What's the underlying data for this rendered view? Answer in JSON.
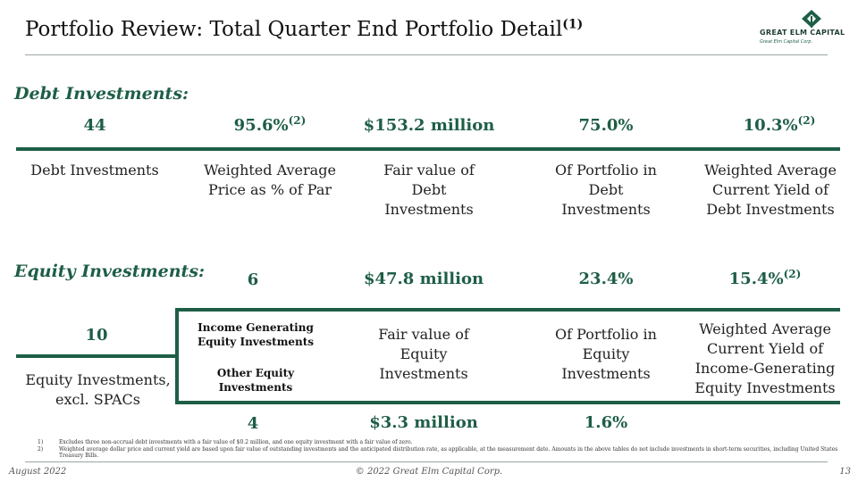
{
  "header": {
    "title": "Portfolio Review: Total Quarter End Portfolio Detail",
    "title_sup": "(1)",
    "logo_text": "GREAT ELM CAPITAL",
    "logo_sub": "Great Elm Capital Corp."
  },
  "debt": {
    "section_label": "Debt Investments:",
    "stats": [
      {
        "value": "44",
        "sup": "",
        "label": "Debt Investments"
      },
      {
        "value": "95.6%",
        "sup": "(2)",
        "label": "Weighted Average Price as % of Par"
      },
      {
        "value": "$153.2 million",
        "sup": "",
        "label": "Fair value of Debt Investments"
      },
      {
        "value": "75.0%",
        "sup": "",
        "label": "Of Portfolio in Debt Investments"
      },
      {
        "value": "10.3%",
        "sup": "(2)",
        "label": "Weighted Average Current Yield of Debt Investments"
      }
    ]
  },
  "equity": {
    "section_label": "Equity Investments:",
    "total_count": "10",
    "total_label": "Equity Investments, excl. SPACs",
    "income_generating": {
      "label": "Income Generating Equity Investments",
      "count": "6",
      "fair_value": "$47.8 million",
      "portfolio_pct": "23.4%",
      "yield": "15.4%",
      "yield_sup": "(2)"
    },
    "other": {
      "label": "Other Equity Investments",
      "count": "4",
      "fair_value": "$3.3 million",
      "portfolio_pct": "1.6%"
    },
    "fair_value_label": "Fair value of Equity Investments",
    "portfolio_label": "Of Portfolio in Equity Investments",
    "yield_label": "Weighted Average Current Yield of Income-Generating Equity Investments"
  },
  "footnotes": [
    {
      "num": "1)",
      "text": "Excludes three non-accrual debt investments with a fair value of $0.2 million, and one equity investment with a fair value of zero."
    },
    {
      "num": "2)",
      "text": "Weighted average dollar price and current yield are based upon fair value of outstanding investments and the anticipated distribution rate, as applicable, at the measurement date. Amounts in the above tables do not include investments in short-term securities, including United States Treasury Bills."
    }
  ],
  "footer": {
    "date": "August 2022",
    "copyright": "© 2022 Great Elm Capital Corp.",
    "page": "13"
  },
  "colors": {
    "accent": "#1e5e46",
    "rule": "#9aa79f"
  }
}
